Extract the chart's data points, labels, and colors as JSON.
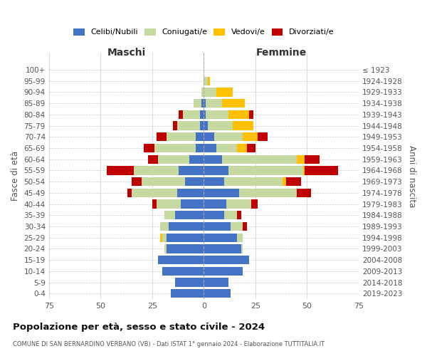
{
  "age_groups": [
    "0-4",
    "5-9",
    "10-14",
    "15-19",
    "20-24",
    "25-29",
    "30-34",
    "35-39",
    "40-44",
    "45-49",
    "50-54",
    "55-59",
    "60-64",
    "65-69",
    "70-74",
    "75-79",
    "80-84",
    "85-89",
    "90-94",
    "95-99",
    "100+"
  ],
  "birth_years": [
    "2019-2023",
    "2014-2018",
    "2009-2013",
    "2004-2008",
    "1999-2003",
    "1994-1998",
    "1989-1993",
    "1984-1988",
    "1979-1983",
    "1974-1978",
    "1969-1973",
    "1964-1968",
    "1959-1963",
    "1954-1958",
    "1949-1953",
    "1944-1948",
    "1939-1943",
    "1934-1938",
    "1929-1933",
    "1924-1928",
    "≤ 1923"
  ],
  "colors": {
    "celibi": "#4472c4",
    "coniugati": "#c5d9a0",
    "vedovi": "#ffc000",
    "divorziati": "#c00000"
  },
  "maschi": {
    "celibi": [
      16,
      14,
      20,
      22,
      18,
      18,
      17,
      14,
      11,
      13,
      9,
      12,
      7,
      4,
      4,
      2,
      2,
      1,
      0,
      0,
      0
    ],
    "coniugati": [
      0,
      0,
      0,
      0,
      1,
      2,
      4,
      5,
      12,
      22,
      21,
      22,
      15,
      20,
      14,
      11,
      8,
      4,
      1,
      0,
      0
    ],
    "vedovi": [
      0,
      0,
      0,
      0,
      0,
      1,
      0,
      0,
      0,
      0,
      0,
      0,
      0,
      0,
      0,
      0,
      0,
      0,
      0,
      0,
      0
    ],
    "divorziati": [
      0,
      0,
      0,
      0,
      0,
      0,
      0,
      0,
      2,
      2,
      5,
      13,
      5,
      5,
      5,
      2,
      2,
      0,
      0,
      0,
      0
    ]
  },
  "femmine": {
    "celibi": [
      13,
      12,
      19,
      22,
      18,
      16,
      13,
      10,
      11,
      17,
      10,
      12,
      9,
      6,
      5,
      2,
      1,
      1,
      0,
      0,
      0
    ],
    "coniugati": [
      0,
      0,
      0,
      0,
      1,
      3,
      6,
      6,
      12,
      28,
      28,
      36,
      36,
      10,
      14,
      12,
      11,
      8,
      6,
      2,
      0
    ],
    "vedovi": [
      0,
      0,
      0,
      0,
      0,
      0,
      0,
      0,
      0,
      0,
      2,
      1,
      4,
      5,
      7,
      10,
      10,
      11,
      8,
      1,
      0
    ],
    "divorziati": [
      0,
      0,
      0,
      0,
      0,
      0,
      2,
      2,
      3,
      7,
      7,
      16,
      7,
      4,
      5,
      0,
      2,
      0,
      0,
      0,
      0
    ]
  },
  "title": "Popolazione per età, sesso e stato civile - 2024",
  "subtitle": "COMUNE DI SAN BERNARDINO VERBANO (VB) - Dati ISTAT 1° gennaio 2024 - Elaborazione TUTTITALIA.IT",
  "label_maschi": "Maschi",
  "label_femmine": "Femmine",
  "label_fasce": "Fasce di età",
  "label_anni": "Anni di nascita",
  "xlim": 75,
  "legend_labels": [
    "Celibi/Nubili",
    "Coniugati/e",
    "Vedovi/e",
    "Divorziati/e"
  ],
  "bg_color": "#ffffff",
  "grid_color": "#cccccc"
}
